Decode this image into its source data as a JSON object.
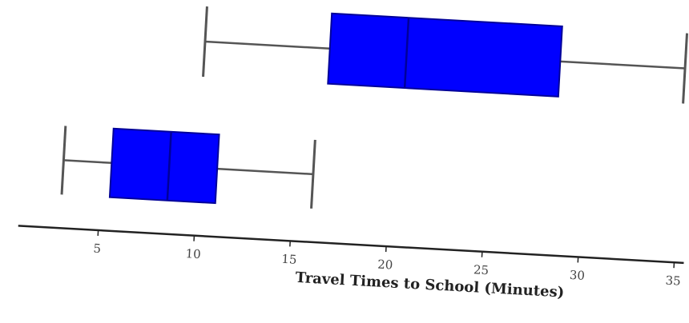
{
  "chart_data": {
    "type": "boxplot",
    "title": "",
    "xlabel": "Travel Times to School (Minutes)",
    "ylabel": "",
    "xlim": [
      2.5,
      35
    ],
    "xticks": [
      5,
      10,
      15,
      20,
      25,
      30,
      35
    ],
    "tick_labels": [
      "5",
      "10",
      "15",
      "20",
      "25",
      "30",
      "35"
    ],
    "grid": false,
    "series": [
      {
        "min": 10,
        "q1": 16.5,
        "median": 20.5,
        "q3": 28.5,
        "max": 35
      },
      {
        "min": 3,
        "q1": 5.5,
        "median": 8.5,
        "q3": 11,
        "max": 16
      }
    ],
    "colors": {
      "box_fill": "#0000ff",
      "box_edge": "#000099",
      "whisker": "#555555",
      "axis": "#222222"
    }
  }
}
